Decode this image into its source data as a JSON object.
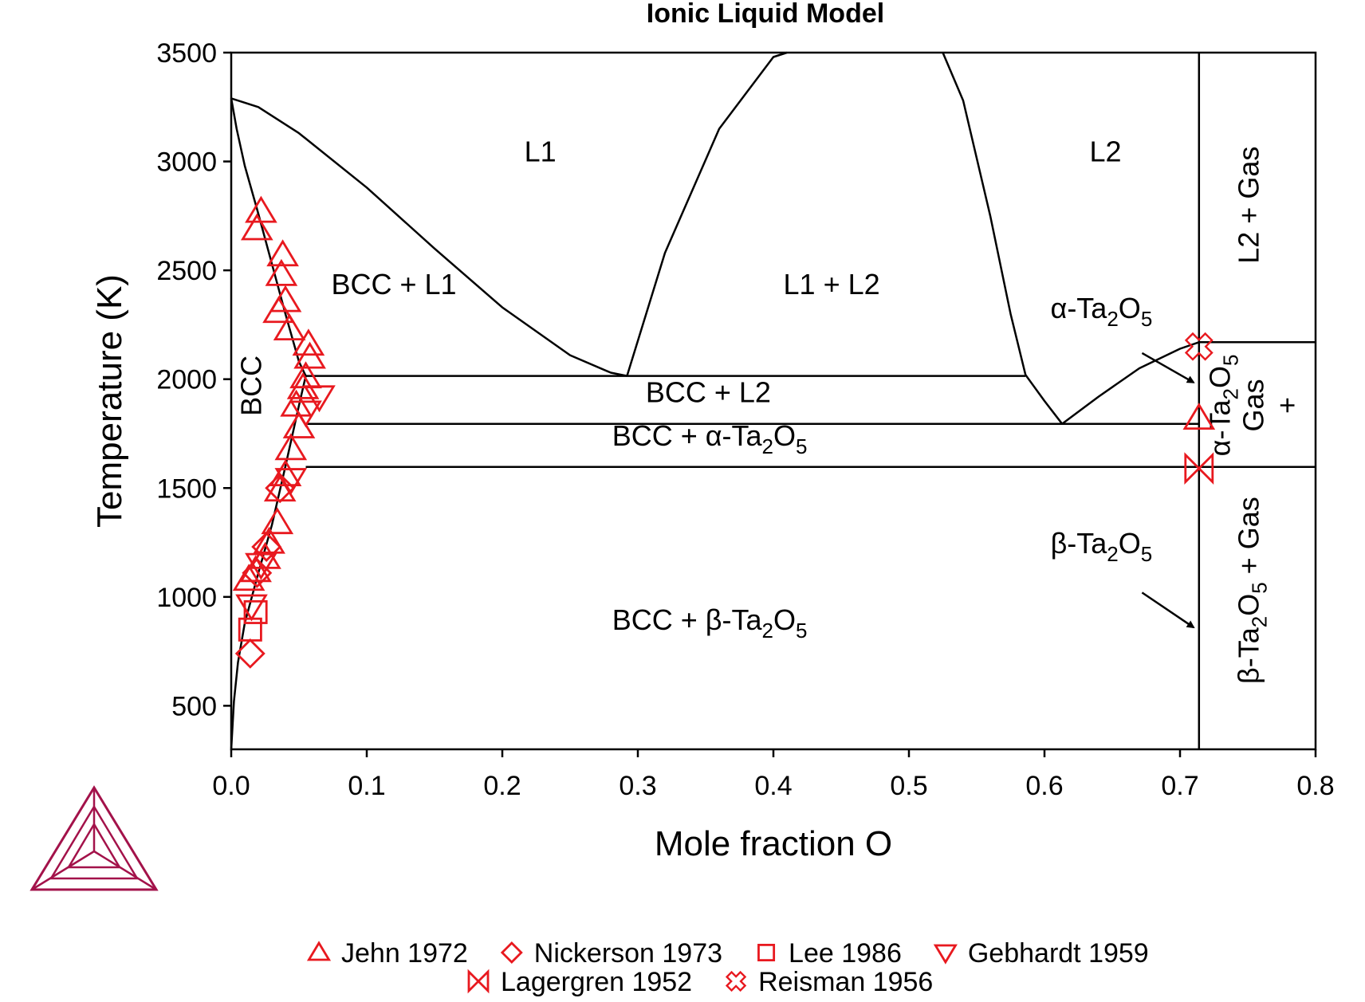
{
  "chart_data": {
    "type": "scatter",
    "title": "Ionic Liquid Model",
    "xlabel": "Mole fraction O",
    "ylabel": "Temperature (K)",
    "xlim": [
      0.0,
      0.8
    ],
    "ylim": [
      300,
      3500
    ],
    "xticks": [
      "0.0",
      "0.1",
      "0.2",
      "0.3",
      "0.4",
      "0.5",
      "0.6",
      "0.7",
      "0.8"
    ],
    "yticks": [
      "500",
      "1000",
      "1500",
      "2000",
      "2500",
      "3000",
      "3500"
    ],
    "grid": false,
    "legend_position": "bottom",
    "marker_color": "#e8191f",
    "logo_color": "#a3124a",
    "phase_boundaries": [
      {
        "id": "bcc-liquidus",
        "x": [
          0.0,
          0.02,
          0.05,
          0.1,
          0.15,
          0.2,
          0.25,
          0.28,
          0.292
        ],
        "y": [
          3290,
          3250,
          3130,
          2880,
          2600,
          2330,
          2110,
          2030,
          2015
        ]
      },
      {
        "id": "bcc-solvus",
        "x": [
          0.0,
          0.004,
          0.01,
          0.02,
          0.03,
          0.04,
          0.05,
          0.055
        ],
        "y": [
          3290,
          3150,
          2980,
          2760,
          2530,
          2300,
          2080,
          2015
        ]
      },
      {
        "id": "bcc-solvus-low",
        "x": [
          0.0,
          0.002,
          0.005,
          0.01,
          0.02,
          0.03,
          0.04,
          0.05,
          0.055
        ],
        "y": [
          300,
          520,
          700,
          880,
          1110,
          1330,
          1600,
          1880,
          2015
        ]
      },
      {
        "id": "l1-miscibility",
        "x": [
          0.292,
          0.32,
          0.36,
          0.4,
          0.41
        ],
        "y": [
          2015,
          2580,
          3150,
          3480,
          3500
        ]
      },
      {
        "id": "l2-miscibility",
        "x": [
          0.525,
          0.54,
          0.56,
          0.575,
          0.586
        ],
        "y": [
          3500,
          3280,
          2750,
          2300,
          2020
        ]
      },
      {
        "id": "l2-liquidus-a",
        "x": [
          0.586,
          0.6,
          0.613
        ],
        "y": [
          2020,
          1900,
          1795
        ]
      },
      {
        "id": "l2-liquidus-b",
        "x": [
          0.613,
          0.64,
          0.67,
          0.7,
          0.714
        ],
        "y": [
          1795,
          1920,
          2050,
          2140,
          2170
        ]
      },
      {
        "id": "monotectic",
        "x": [
          0.055,
          0.586
        ],
        "y": [
          2015,
          2015
        ]
      },
      {
        "id": "eutectic",
        "x": [
          0.055,
          0.714
        ],
        "y": [
          1795,
          1795
        ]
      },
      {
        "id": "alpha-beta-transition",
        "x": [
          0.055,
          0.8
        ],
        "y": [
          1597,
          1597
        ]
      },
      {
        "id": "gas-boundary",
        "x": [
          0.714,
          0.8
        ],
        "y": [
          2170,
          2170
        ]
      },
      {
        "id": "ta2o5-line",
        "x": [
          0.714,
          0.714
        ],
        "y": [
          300,
          3500
        ]
      }
    ],
    "series": [
      {
        "name": "Jehn 1972",
        "marker": "triangle-up",
        "x": [
          0.022,
          0.019,
          0.038,
          0.037,
          0.04,
          0.035,
          0.043,
          0.057,
          0.058,
          0.055,
          0.053,
          0.048,
          0.05,
          0.044,
          0.04,
          0.036,
          0.034,
          0.028,
          0.025,
          0.018,
          0.013,
          0.714
        ],
        "y": [
          2770,
          2690,
          2570,
          2480,
          2360,
          2310,
          2230,
          2160,
          2100,
          2010,
          1960,
          1880,
          1780,
          1680,
          1560,
          1490,
          1340,
          1250,
          1180,
          1120,
          1080,
          1820
        ]
      },
      {
        "name": "Nickerson 1973",
        "marker": "diamond",
        "x": [
          0.036,
          0.026,
          0.019,
          0.014
        ],
        "y": [
          1500,
          1230,
          1110,
          740
        ]
      },
      {
        "name": "Lee 1986",
        "marker": "square",
        "x": [
          0.018,
          0.014
        ],
        "y": [
          930,
          850
        ]
      },
      {
        "name": "Gebhardt 1959",
        "marker": "triangle-down",
        "x": [
          0.065,
          0.055,
          0.044,
          0.022,
          0.015
        ],
        "y": [
          1920,
          1850,
          1540,
          1150,
          960
        ]
      },
      {
        "name": "Lagergren 1952",
        "marker": "bowtie",
        "x": [
          0.714
        ],
        "y": [
          1590
        ]
      },
      {
        "name": "Reisman 1956",
        "marker": "cross-x",
        "x": [
          0.714
        ],
        "y": [
          2150
        ]
      }
    ],
    "region_labels": [
      {
        "text": "L1",
        "x": 0.228,
        "y": 3000,
        "rotate": 0
      },
      {
        "text": "L2",
        "x": 0.645,
        "y": 3000,
        "rotate": 0
      },
      {
        "text": "BCC + L1",
        "x": 0.12,
        "y": 2390,
        "rotate": 0
      },
      {
        "text": "L1 + L2",
        "x": 0.443,
        "y": 2390,
        "rotate": 0
      },
      {
        "text": "BCC + L2",
        "x": 0.352,
        "y": 1895,
        "rotate": 0
      },
      {
        "text": "BCC + α-Ta",
        "sub1": "2",
        "mid": "O",
        "sub2": "5",
        "x": 0.353,
        "y": 1695,
        "rotate": 0
      },
      {
        "text": "BCC + β-Ta",
        "sub1": "2",
        "mid": "O",
        "sub2": "5",
        "x": 0.353,
        "y": 850,
        "rotate": 0
      },
      {
        "text": "BCC",
        "x": 0.022,
        "y": 1970,
        "rotate": -90
      },
      {
        "text": "L2 + Gas",
        "x": 0.758,
        "y": 2800,
        "rotate": -90
      },
      {
        "text": "β-Ta",
        "sub1": "2",
        "mid": "O",
        "sub2": "5",
        "tail": " + Gas",
        "x": 0.758,
        "y": 1030,
        "rotate": -90
      }
    ],
    "annotations": [
      {
        "text": "α-Ta",
        "sub1": "2",
        "mid": "O",
        "sub2": "5",
        "label_x": 0.642,
        "label_y": 2280,
        "arrow_from": [
          0.672,
          2120
        ],
        "arrow_to": [
          0.71,
          1985
        ]
      },
      {
        "text": "β-Ta",
        "sub1": "2",
        "mid": "O",
        "sub2": "5",
        "label_x": 0.642,
        "label_y": 1200,
        "arrow_from": [
          0.672,
          1020
        ],
        "arrow_to": [
          0.71,
          860
        ]
      }
    ],
    "stacked_label": {
      "line1_text": "α-Ta",
      "line1_sub1": "2",
      "line1_mid": "O",
      "line1_sub2": "5",
      "line2": "Gas",
      "line3": "+",
      "x": 0.758,
      "y": 1880
    }
  }
}
